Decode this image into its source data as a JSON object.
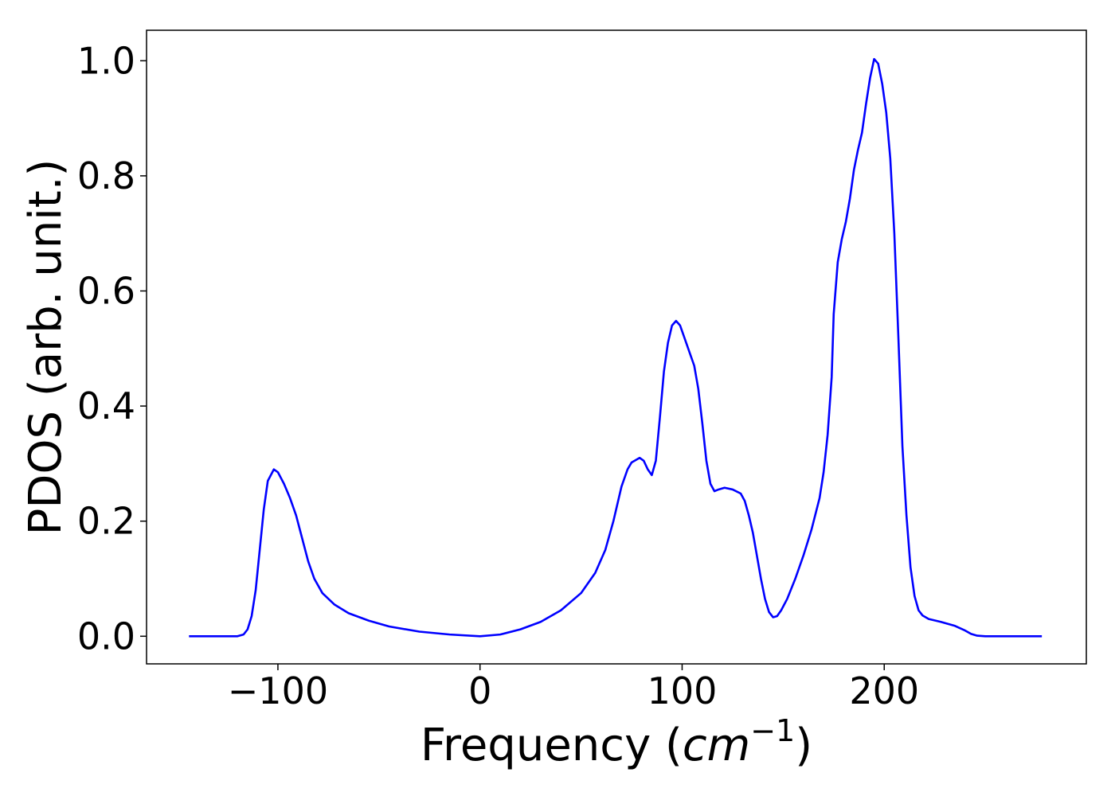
{
  "chart_data": {
    "type": "line",
    "xlabel": [
      "Frequency (",
      "cm",
      "−1",
      ")"
    ],
    "ylabel": "PDOS (arb. unit.)",
    "xlim": [
      -165,
      300
    ],
    "ylim": [
      -0.048,
      1.053
    ],
    "xticks": [
      {
        "value": -100,
        "label": "−100"
      },
      0,
      100,
      200
    ],
    "yticks": [
      {
        "value": 0,
        "label": "0.0"
      },
      0.2,
      0.4,
      0.6,
      0.8,
      {
        "value": 1,
        "label": "1.0"
      }
    ],
    "grid": false,
    "series": [
      {
        "color": "#0000ff",
        "x": [
          -144,
          -120,
          -117,
          -115,
          -113,
          -111,
          -109,
          -107,
          -105,
          -102,
          -100,
          -97,
          -94,
          -91,
          -88,
          -85,
          -82,
          -78,
          -72,
          -65,
          -55,
          -45,
          -30,
          -15,
          0,
          10,
          20,
          30,
          40,
          50,
          57,
          62,
          66,
          70,
          73,
          75,
          79,
          81,
          83,
          85,
          87,
          89,
          91,
          93,
          95,
          97,
          99,
          101,
          104,
          106,
          108,
          110,
          112,
          114,
          116,
          118,
          121,
          125,
          129,
          131,
          133,
          135,
          137,
          139,
          141,
          143,
          145,
          147,
          149,
          152,
          156,
          160,
          164,
          168,
          170,
          172,
          174,
          175,
          177,
          179,
          181,
          183,
          185,
          187,
          189,
          191,
          193,
          195,
          197,
          199,
          201,
          203,
          205,
          207,
          209,
          211,
          213,
          215,
          217,
          219,
          222,
          228,
          235,
          240,
          243,
          246,
          250,
          278
        ],
        "values": [
          0,
          0,
          0.003,
          0.012,
          0.035,
          0.08,
          0.15,
          0.22,
          0.27,
          0.29,
          0.285,
          0.265,
          0.24,
          0.21,
          0.17,
          0.13,
          0.1,
          0.075,
          0.055,
          0.04,
          0.027,
          0.017,
          0.008,
          0.003,
          0,
          0.003,
          0.012,
          0.025,
          0.045,
          0.075,
          0.11,
          0.15,
          0.2,
          0.26,
          0.29,
          0.302,
          0.31,
          0.305,
          0.29,
          0.28,
          0.305,
          0.38,
          0.46,
          0.51,
          0.54,
          0.548,
          0.54,
          0.52,
          0.49,
          0.47,
          0.43,
          0.37,
          0.305,
          0.265,
          0.252,
          0.255,
          0.258,
          0.255,
          0.248,
          0.235,
          0.21,
          0.18,
          0.14,
          0.1,
          0.065,
          0.042,
          0.033,
          0.035,
          0.045,
          0.065,
          0.1,
          0.14,
          0.185,
          0.24,
          0.285,
          0.35,
          0.45,
          0.56,
          0.65,
          0.69,
          0.72,
          0.76,
          0.81,
          0.845,
          0.875,
          0.925,
          0.97,
          1.003,
          0.995,
          0.96,
          0.91,
          0.83,
          0.7,
          0.52,
          0.33,
          0.21,
          0.12,
          0.07,
          0.045,
          0.036,
          0.03,
          0.025,
          0.018,
          0.01,
          0.004,
          0.001,
          0,
          0
        ]
      }
    ]
  }
}
